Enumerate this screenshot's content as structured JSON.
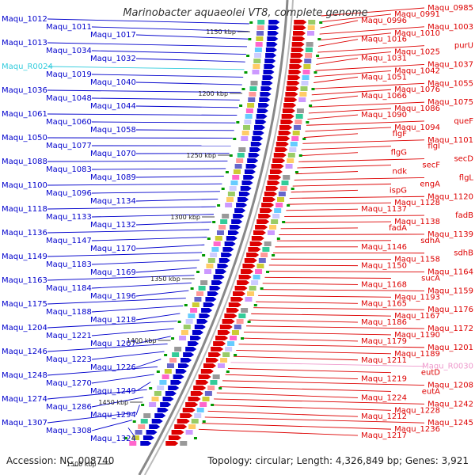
{
  "title": "Marinobacter aquaeolei VT8, complete genome",
  "footer": {
    "accession": "Accession: NC_008740",
    "summary": "Topology: circular; Length: 4,326,849 bp; Genes: 3,921"
  },
  "colors": {
    "left_genes": "#0000cc",
    "right_genes": "#dd0000",
    "rna": "#33ccdd",
    "pseudo_rna": "#ee99cc",
    "backbone": "#888888",
    "ticks": "#009900"
  },
  "scale_ticks": [
    "1150 kbp",
    "1200 kbp",
    "1250 kbp",
    "1300 kbp",
    "1350 kbp",
    "1400 kbp",
    "1450 kbp",
    "1500 kbp"
  ],
  "left_labels": [
    "Maqu_1012",
    "Maqu_1011",
    "Maqu_1017",
    "Maqu_1013",
    "Maqu_1034",
    "Maqu_1032",
    "Maqu_R0024",
    "Maqu_1019",
    "Maqu_1040",
    "Maqu_1036",
    "Maqu_1048",
    "Maqu_1044",
    "Maqu_1061",
    "Maqu_1060",
    "Maqu_1058",
    "Maqu_1050",
    "Maqu_1077",
    "Maqu_1070",
    "Maqu_1088",
    "Maqu_1083",
    "Maqu_1089",
    "Maqu_1100",
    "Maqu_1096",
    "Maqu_1134",
    "Maqu_1118",
    "Maqu_1133",
    "Maqu_1132",
    "Maqu_1136",
    "Maqu_1147",
    "Maqu_1170",
    "Maqu_1149",
    "Maqu_1183",
    "Maqu_1169",
    "Maqu_1163",
    "Maqu_1184",
    "Maqu_1196",
    "Maqu_1175",
    "Maqu_1188",
    "Maqu_1218",
    "Maqu_1204",
    "Maqu_1221",
    "Maqu_1207",
    "Maqu_1246",
    "Maqu_1223",
    "Maqu_1226",
    "Maqu_1248",
    "Maqu_1270",
    "Maqu_1249",
    "Maqu_1274",
    "Maqu_1286",
    "Maqu_1294",
    "Maqu_1307",
    "Maqu_1308",
    "Maqu_1324"
  ],
  "right_labels": [
    "Maqu_0985",
    "Maqu_0991",
    "Maqu_0996",
    "Maqu_1003",
    "Maqu_1010",
    "Maqu_1016",
    "purU",
    "Maqu_1025",
    "Maqu_1031",
    "Maqu_1037",
    "Maqu_1042",
    "Maqu_1051",
    "Maqu_1055",
    "Maqu_1076",
    "Maqu_1066",
    "Maqu_1075",
    "Maqu_1086",
    "Maqu_1090",
    "queF",
    "Maqu_1094",
    "flgF",
    "Maqu_1101",
    "flgI",
    "flgG",
    "secD",
    "secF",
    "ndk",
    "flgL",
    "engA",
    "ispG",
    "Maqu_1120",
    "Maqu_1128",
    "Maqu_1137",
    "fadB",
    "Maqu_1138",
    "fadA",
    "Maqu_1139",
    "sdhA",
    "Maqu_1146",
    "sdhB",
    "Maqu_1158",
    "Maqu_1150",
    "Maqu_1164",
    "sucA",
    "Maqu_1168",
    "Maqu_1159",
    "Maqu_1193",
    "Maqu_1165",
    "Maqu_1176",
    "Maqu_1167",
    "Maqu_1186",
    "Maqu_1172",
    "Maqu_1190",
    "Maqu_1179",
    "Maqu_1201",
    "Maqu_1189",
    "Maqu_1211",
    "Maqu_R0030",
    "eutD",
    "Maqu_1219",
    "Maqu_1208",
    "eutA",
    "Maqu_1224",
    "Maqu_1242",
    "Maqu_1228",
    "Maqu_1212",
    "Maqu_1245",
    "Maqu_1236",
    "Maqu_1217"
  ]
}
